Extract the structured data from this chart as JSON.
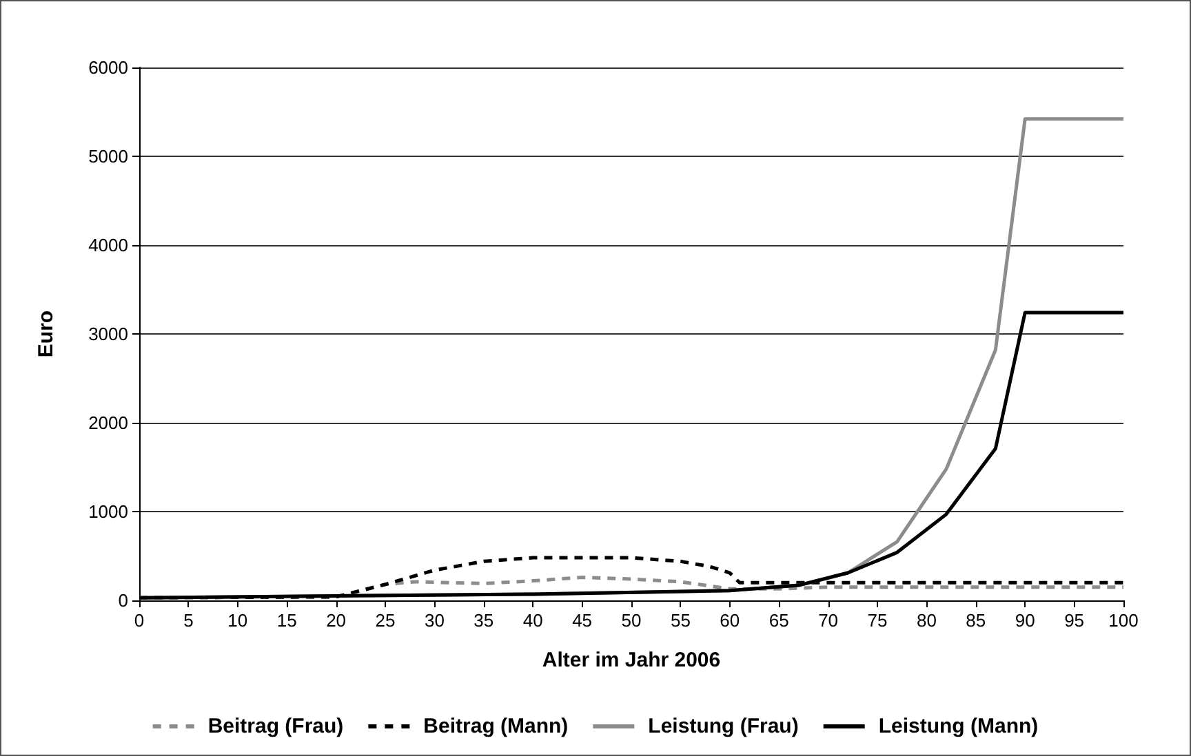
{
  "chart_data": {
    "type": "line",
    "xlabel": "Alter im Jahr 2006",
    "ylabel": "Euro",
    "xlim": [
      0,
      100
    ],
    "xticks": [
      0,
      5,
      10,
      15,
      20,
      25,
      30,
      35,
      40,
      45,
      50,
      55,
      60,
      65,
      70,
      75,
      80,
      85,
      90,
      95,
      100
    ],
    "ylim": [
      0,
      6000
    ],
    "yticks": [
      0,
      1000,
      2000,
      3000,
      4000,
      5000,
      6000
    ],
    "grid": "y",
    "legend": "bottom",
    "marker": "none",
    "series": [
      {
        "name": "Beitrag (Frau)",
        "color": "#8c8c8c",
        "line_style": "dashed",
        "x": [
          0,
          20,
          25,
          28,
          35,
          40,
          45,
          50,
          55,
          60,
          65,
          70,
          100
        ],
        "values": [
          30,
          40,
          180,
          210,
          190,
          220,
          260,
          240,
          210,
          130,
          130,
          150,
          150
        ]
      },
      {
        "name": "Beitrag (Mann)",
        "color": "#000000",
        "line_style": "dashed",
        "x": [
          0,
          20,
          25,
          30,
          35,
          40,
          50,
          55,
          58,
          60,
          61,
          100
        ],
        "values": [
          30,
          40,
          180,
          340,
          440,
          480,
          480,
          440,
          380,
          310,
          200,
          200
        ]
      },
      {
        "name": "Leistung (Frau)",
        "color": "#8c8c8c",
        "line_style": "solid",
        "x": [
          0,
          20,
          40,
          60,
          67,
          72,
          77,
          82,
          87,
          90,
          100
        ],
        "values": [
          30,
          50,
          70,
          110,
          170,
          310,
          660,
          1480,
          2820,
          5420,
          5420
        ]
      },
      {
        "name": "Leistung (Mann)",
        "color": "#000000",
        "line_style": "solid",
        "x": [
          0,
          20,
          40,
          60,
          67,
          72,
          77,
          82,
          87,
          90,
          100
        ],
        "values": [
          30,
          50,
          70,
          110,
          170,
          310,
          540,
          970,
          1710,
          3240,
          3240
        ]
      }
    ]
  }
}
